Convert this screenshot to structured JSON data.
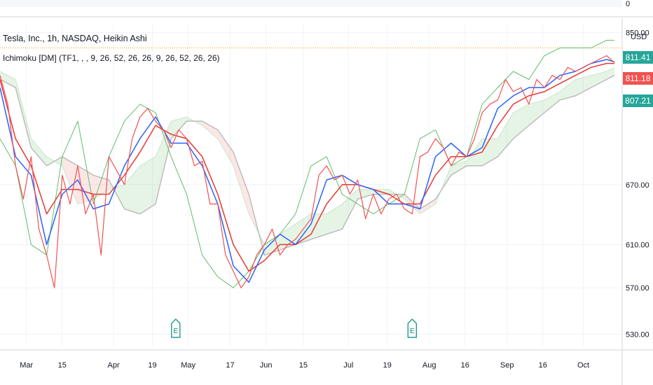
{
  "header": {
    "symbol_line": "Tesla, Inc., 1h, NASDAQ, Heikin Ashi",
    "indicator_line": "Ichimoku [DM] (TF1, , , 9, 26, 52, 26, 26, 9, 26, 52, 26, 26)",
    "volume_axis_label": "0",
    "currency": "USD"
  },
  "price_tags": [
    {
      "label": "811.41",
      "color": "#26a69a"
    },
    {
      "label": "811.18",
      "color": "#ef5350"
    },
    {
      "label": "807.21",
      "color": "#26a69a"
    }
  ],
  "events": [
    {
      "label": "E",
      "x": 11.3
    },
    {
      "label": "E",
      "x": 26.5
    }
  ],
  "chart_data": {
    "type": "line",
    "scale": "log",
    "ylim": [
      520,
      860
    ],
    "xlim": [
      0,
      40
    ],
    "y_ticks": [
      "850.00",
      "670.00",
      "610.00",
      "570.00",
      "530.00"
    ],
    "y_tick_values": [
      850,
      670,
      610,
      570,
      530
    ],
    "x_ticks": [
      {
        "label": "Mar",
        "x": 1.7
      },
      {
        "label": "15",
        "x": 4.0
      },
      {
        "label": "Apr",
        "x": 7.3
      },
      {
        "label": "19",
        "x": 9.8
      },
      {
        "label": "May",
        "x": 12.1
      },
      {
        "label": "17",
        "x": 14.8
      },
      {
        "label": "Jun",
        "x": 17.1
      },
      {
        "label": "15",
        "x": 19.5
      },
      {
        "label": "Jul",
        "x": 22.4
      },
      {
        "label": "19",
        "x": 24.9
      },
      {
        "label": "Aug",
        "x": 27.6
      },
      {
        "label": "16",
        "x": 29.9
      },
      {
        "label": "Sep",
        "x": 32.6
      },
      {
        "label": "16",
        "x": 34.9
      },
      {
        "label": "Oct",
        "x": 37.5
      }
    ],
    "series": [
      {
        "role": "price",
        "color": "#ef5350",
        "x": [
          0,
          0.5,
          1,
          1.5,
          2,
          2.5,
          3,
          3.5,
          4,
          4.5,
          5,
          5.5,
          6,
          6.5,
          7,
          7.5,
          8,
          8.5,
          9,
          9.5,
          10,
          10.5,
          11,
          11.5,
          12,
          12.5,
          13,
          13.5,
          14,
          14.5,
          15,
          15.5,
          16,
          16.5,
          17,
          17.5,
          18,
          18.5,
          19,
          19.5,
          20,
          20.5,
          21,
          21.5,
          22,
          22.5,
          23,
          23.5,
          24,
          24.5,
          25,
          25.5,
          26,
          26.5,
          27,
          27.5,
          28,
          28.5,
          29,
          29.5,
          30,
          30.5,
          31,
          31.5,
          32,
          32.5,
          33,
          33.5,
          34,
          34.5,
          35,
          35.5,
          36,
          36.5,
          37,
          37.5,
          38,
          38.5,
          39,
          39.5
        ],
        "values": [
          795,
          760,
          690,
          655,
          700,
          625,
          600,
          570,
          680,
          650,
          690,
          640,
          660,
          600,
          700,
          685,
          670,
          720,
          745,
          755,
          740,
          730,
          710,
          730,
          720,
          690,
          695,
          650,
          650,
          600,
          585,
          570,
          580,
          600,
          610,
          625,
          600,
          610,
          615,
          625,
          635,
          680,
          690,
          675,
          680,
          660,
          675,
          635,
          660,
          640,
          655,
          660,
          645,
          640,
          700,
          705,
          720,
          710,
          690,
          705,
          700,
          720,
          750,
          760,
          765,
          790,
          775,
          780,
          760,
          790,
          780,
          795,
          790,
          805,
          800,
          805,
          810,
          815,
          820,
          811
        ]
      },
      {
        "role": "tenkan",
        "color": "#2962ff",
        "x": [
          0,
          1,
          2,
          3,
          4,
          5,
          6,
          7,
          8,
          9,
          10,
          11,
          12,
          13,
          14,
          15,
          16,
          17,
          18,
          19,
          20,
          21,
          22,
          23,
          24,
          25,
          26,
          27,
          28,
          29,
          30,
          31,
          32,
          33,
          34,
          35,
          36,
          37,
          38,
          39,
          39.5
        ],
        "values": [
          780,
          700,
          680,
          610,
          660,
          675,
          645,
          650,
          690,
          720,
          745,
          715,
          715,
          690,
          650,
          590,
          575,
          605,
          620,
          610,
          630,
          675,
          680,
          670,
          665,
          650,
          650,
          645,
          700,
          715,
          700,
          710,
          755,
          770,
          780,
          780,
          795,
          800,
          810,
          815,
          812
        ]
      },
      {
        "role": "kijun",
        "color": "#e53935",
        "x": [
          0,
          1,
          2,
          3,
          4,
          5,
          6,
          7,
          8,
          9,
          10,
          11,
          12,
          13,
          14,
          15,
          16,
          17,
          18,
          19,
          20,
          21,
          22,
          23,
          24,
          25,
          26,
          27,
          28,
          29,
          30,
          31,
          32,
          33,
          34,
          35,
          36,
          37,
          38,
          39,
          39.5
        ],
        "values": [
          790,
          720,
          690,
          640,
          665,
          665,
          660,
          660,
          680,
          705,
          735,
          725,
          720,
          700,
          660,
          610,
          585,
          595,
          610,
          610,
          620,
          650,
          670,
          670,
          665,
          660,
          650,
          650,
          680,
          700,
          700,
          705,
          735,
          760,
          770,
          775,
          785,
          795,
          805,
          810,
          810
        ]
      },
      {
        "role": "chikou",
        "color": "#66bb6a",
        "x": [
          0,
          1,
          2,
          3,
          4,
          5,
          6,
          7,
          8,
          9,
          10,
          11,
          12,
          13,
          14,
          15,
          16,
          17,
          18,
          19,
          20,
          21,
          22,
          23,
          24,
          25,
          26,
          27,
          28,
          29,
          30,
          31,
          32,
          33,
          34,
          35,
          36,
          37,
          38,
          39,
          39.5
        ],
        "values": [
          720,
          690,
          610,
          600,
          700,
          740,
          650,
          700,
          740,
          760,
          750,
          700,
          660,
          600,
          580,
          570,
          585,
          610,
          620,
          640,
          690,
          700,
          660,
          650,
          640,
          650,
          660,
          720,
          730,
          690,
          700,
          760,
          780,
          800,
          790,
          820,
          830,
          830,
          830,
          840,
          840
        ]
      },
      {
        "role": "cloud-a",
        "color": "#c8e6c9",
        "x": [
          0,
          1,
          2,
          3,
          4,
          5,
          6,
          7,
          8,
          9,
          10,
          11,
          12,
          13,
          14,
          15,
          16,
          17,
          18,
          19,
          20,
          21,
          22,
          23,
          24,
          25,
          26,
          27,
          28,
          29,
          30,
          31,
          32,
          33,
          34,
          35,
          36,
          37,
          38,
          39,
          39.5
        ],
        "values": [
          800,
          790,
          720,
          700,
          690,
          650,
          655,
          665,
          670,
          690,
          700,
          740,
          745,
          735,
          720,
          690,
          640,
          610,
          620,
          630,
          640,
          640,
          650,
          665,
          665,
          665,
          655,
          640,
          650,
          690,
          695,
          720,
          720,
          750,
          760,
          765,
          775,
          790,
          795,
          800,
          805
        ]
      },
      {
        "role": "cloud-b",
        "color": "#ffcdd2",
        "x": [
          0,
          1,
          2,
          3,
          4,
          5,
          6,
          7,
          8,
          9,
          10,
          11,
          12,
          13,
          14,
          15,
          16,
          17,
          18,
          19,
          20,
          21,
          22,
          23,
          24,
          25,
          26,
          27,
          28,
          29,
          30,
          31,
          32,
          33,
          34,
          35,
          36,
          37,
          38,
          39,
          39.5
        ],
        "values": [
          790,
          780,
          710,
          690,
          700,
          690,
          680,
          675,
          645,
          640,
          650,
          720,
          740,
          740,
          730,
          705,
          660,
          600,
          605,
          610,
          615,
          620,
          625,
          655,
          660,
          660,
          660,
          645,
          655,
          680,
          690,
          690,
          700,
          720,
          735,
          750,
          765,
          770,
          780,
          790,
          795
        ]
      }
    ]
  }
}
